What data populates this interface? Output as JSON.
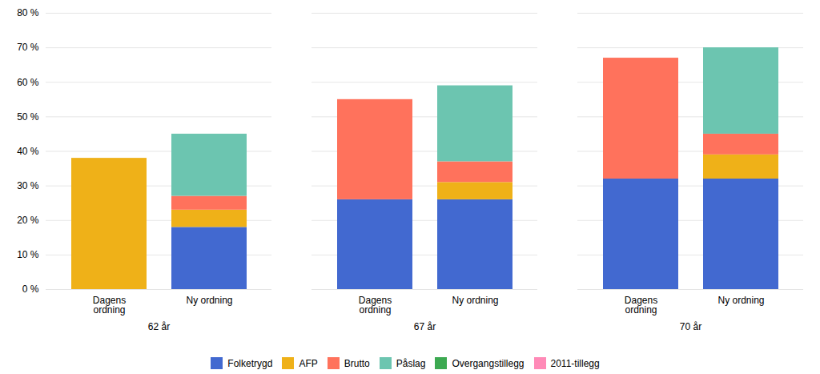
{
  "chart_data": {
    "type": "bar",
    "stacked": true,
    "categories": [
      "Dagens\nordning",
      "Ny ordning",
      "Dagens\nordning",
      "Ny ordning",
      "Dagens\nordning",
      "Ny ordning"
    ],
    "groups": [
      "62 år",
      "67 år",
      "70 år"
    ],
    "series": [
      {
        "name": "Folketrygd",
        "values": [
          0,
          18,
          26,
          26,
          32,
          32
        ]
      },
      {
        "name": "AFP",
        "values": [
          38,
          5,
          0,
          5,
          0,
          7
        ]
      },
      {
        "name": "Brutto",
        "values": [
          0,
          4,
          29,
          6,
          35,
          6
        ]
      },
      {
        "name": "Påslag",
        "values": [
          0,
          18,
          0,
          22,
          0,
          25
        ]
      },
      {
        "name": "Overgangstillegg",
        "values": [
          0,
          0,
          0,
          0,
          0,
          0
        ]
      },
      {
        "name": "2011-tillegg",
        "values": [
          0,
          0,
          0,
          0,
          0,
          0
        ]
      }
    ],
    "ylim": [
      0,
      80
    ],
    "yticks": [
      {
        "value": 0,
        "label": "0 %"
      },
      {
        "value": 10,
        "label": "10 %"
      },
      {
        "value": 20,
        "label": "20 %"
      },
      {
        "value": 30,
        "label": "30 %"
      },
      {
        "value": 40,
        "label": "40 %"
      },
      {
        "value": 50,
        "label": "50 %"
      },
      {
        "value": 60,
        "label": "60 %"
      },
      {
        "value": 70,
        "label": "70 %"
      },
      {
        "value": 80,
        "label": "80 %"
      }
    ],
    "grid": true,
    "legend": "bottom"
  }
}
